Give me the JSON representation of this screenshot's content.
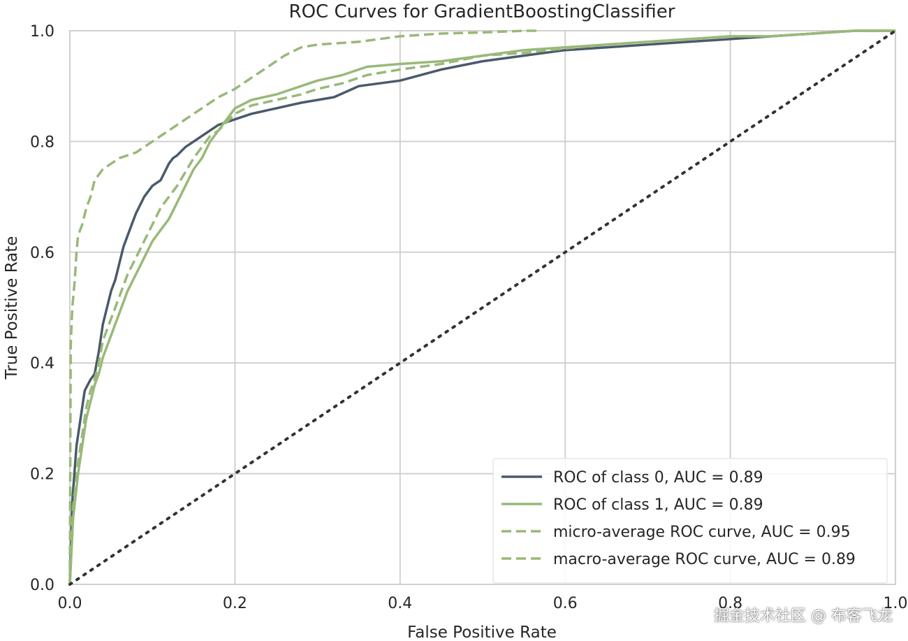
{
  "chart_data": {
    "type": "line",
    "title": "ROC Curves for GradientBoostingClassifier",
    "xlabel": "False Positive Rate",
    "ylabel": "True Positive Rate",
    "xlim": [
      0,
      1
    ],
    "ylim": [
      0,
      1
    ],
    "xticks": [
      "0.0",
      "0.2",
      "0.4",
      "0.6",
      "0.8",
      "1.0"
    ],
    "yticks": [
      "0.0",
      "0.2",
      "0.4",
      "0.6",
      "0.8",
      "1.0"
    ],
    "grid": true,
    "legend_position": "lower-right",
    "series": [
      {
        "name": "ROC of class 0, AUC = 0.89",
        "color": "#4a5a6b",
        "style": "solid",
        "x": [
          0,
          0.003,
          0.008,
          0.013,
          0.018,
          0.025,
          0.03,
          0.035,
          0.04,
          0.045,
          0.05,
          0.055,
          0.06,
          0.065,
          0.07,
          0.075,
          0.08,
          0.09,
          0.1,
          0.11,
          0.12,
          0.125,
          0.13,
          0.14,
          0.15,
          0.16,
          0.17,
          0.18,
          0.2,
          0.22,
          0.25,
          0.28,
          0.3,
          0.32,
          0.35,
          0.4,
          0.45,
          0.5,
          0.55,
          0.6,
          0.65,
          0.7,
          0.75,
          0.8,
          0.85,
          0.9,
          0.95,
          1.0
        ],
        "y": [
          0,
          0.15,
          0.25,
          0.3,
          0.35,
          0.37,
          0.38,
          0.42,
          0.47,
          0.5,
          0.53,
          0.55,
          0.58,
          0.61,
          0.63,
          0.65,
          0.67,
          0.7,
          0.72,
          0.73,
          0.76,
          0.77,
          0.775,
          0.79,
          0.8,
          0.81,
          0.82,
          0.83,
          0.84,
          0.85,
          0.86,
          0.87,
          0.875,
          0.88,
          0.9,
          0.91,
          0.93,
          0.945,
          0.955,
          0.965,
          0.97,
          0.975,
          0.98,
          0.985,
          0.99,
          0.995,
          1.0,
          1.0
        ]
      },
      {
        "name": "ROC of class 1, AUC = 0.89",
        "color": "#98b978",
        "style": "solid",
        "x": [
          0,
          0.004,
          0.01,
          0.015,
          0.02,
          0.025,
          0.03,
          0.035,
          0.04,
          0.05,
          0.06,
          0.07,
          0.08,
          0.09,
          0.1,
          0.11,
          0.12,
          0.13,
          0.14,
          0.15,
          0.16,
          0.17,
          0.18,
          0.19,
          0.2,
          0.22,
          0.25,
          0.28,
          0.3,
          0.33,
          0.36,
          0.4,
          0.45,
          0.5,
          0.55,
          0.6,
          0.65,
          0.7,
          0.75,
          0.8,
          0.85,
          0.9,
          0.95,
          1.0
        ],
        "y": [
          0,
          0.12,
          0.2,
          0.25,
          0.3,
          0.33,
          0.36,
          0.38,
          0.41,
          0.45,
          0.49,
          0.53,
          0.56,
          0.59,
          0.62,
          0.64,
          0.66,
          0.69,
          0.72,
          0.75,
          0.77,
          0.8,
          0.82,
          0.84,
          0.86,
          0.875,
          0.885,
          0.9,
          0.91,
          0.92,
          0.935,
          0.94,
          0.945,
          0.955,
          0.965,
          0.97,
          0.975,
          0.98,
          0.985,
          0.99,
          0.99,
          0.995,
          1.0,
          1.0
        ]
      },
      {
        "name": "micro-average ROC curve, AUC = 0.95",
        "color": "#98b978",
        "style": "dashed",
        "x": [
          0,
          0.001,
          0.003,
          0.006,
          0.008,
          0.01,
          0.015,
          0.02,
          0.025,
          0.03,
          0.04,
          0.06,
          0.08,
          0.1,
          0.12,
          0.15,
          0.18,
          0.2,
          0.22,
          0.24,
          0.26,
          0.28,
          0.3,
          0.35,
          0.4,
          0.45,
          0.5,
          0.55,
          0.57
        ],
        "y": [
          0,
          0.43,
          0.5,
          0.55,
          0.6,
          0.63,
          0.65,
          0.68,
          0.7,
          0.73,
          0.75,
          0.77,
          0.78,
          0.8,
          0.82,
          0.85,
          0.88,
          0.895,
          0.915,
          0.935,
          0.955,
          0.97,
          0.975,
          0.98,
          0.99,
          0.995,
          0.997,
          1.0,
          1.0
        ]
      },
      {
        "name": "macro-average ROC curve, AUC = 0.89",
        "color": "#98b978",
        "style": "dashed",
        "x": [
          0,
          0.004,
          0.01,
          0.015,
          0.02,
          0.025,
          0.03,
          0.035,
          0.04,
          0.05,
          0.06,
          0.07,
          0.08,
          0.09,
          0.1,
          0.11,
          0.12,
          0.13,
          0.14,
          0.15,
          0.16,
          0.17,
          0.18,
          0.19,
          0.2,
          0.22,
          0.25,
          0.28,
          0.3,
          0.33,
          0.36,
          0.4,
          0.45,
          0.5,
          0.55,
          0.6,
          0.65,
          0.7,
          0.75,
          0.8,
          0.85,
          0.9,
          0.95,
          1.0
        ],
        "y": [
          0,
          0.14,
          0.22,
          0.27,
          0.32,
          0.35,
          0.37,
          0.4,
          0.44,
          0.48,
          0.52,
          0.56,
          0.59,
          0.62,
          0.65,
          0.68,
          0.7,
          0.72,
          0.745,
          0.77,
          0.79,
          0.81,
          0.82,
          0.835,
          0.85,
          0.865,
          0.875,
          0.885,
          0.895,
          0.905,
          0.92,
          0.93,
          0.94,
          0.955,
          0.96,
          0.968,
          0.975,
          0.98,
          0.985,
          0.99,
          0.99,
          0.995,
          1.0,
          1.0
        ]
      },
      {
        "name": "chance",
        "color": "#333333",
        "style": "dotted",
        "show_in_legend": false,
        "x": [
          0,
          1
        ],
        "y": [
          0,
          1
        ]
      }
    ]
  },
  "watermark": "掘金技术社区 @ 布客飞龙"
}
